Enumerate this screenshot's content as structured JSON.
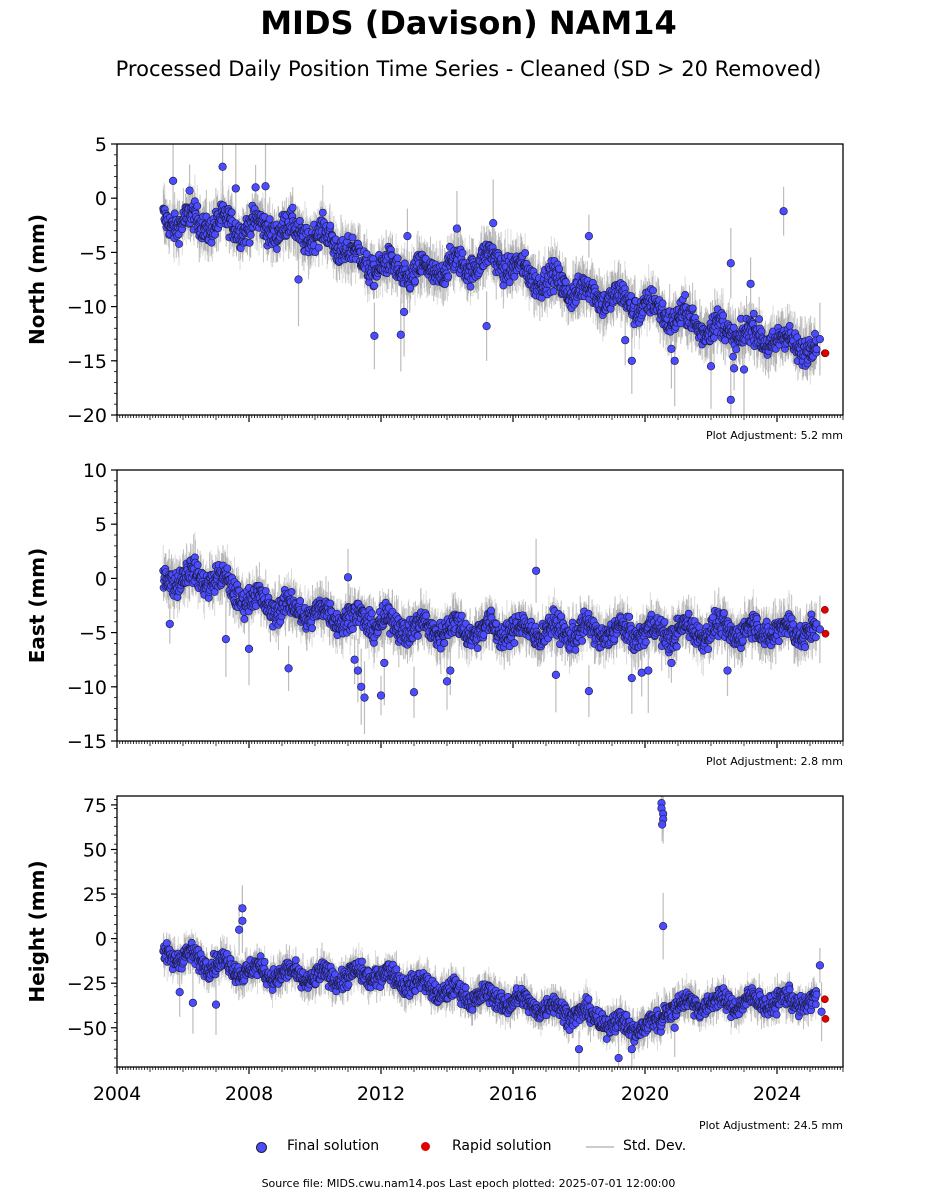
{
  "title": "MIDS (Davison) NAM14",
  "subtitle": "Processed Daily Position Time Series - Cleaned (SD > 20 Removed)",
  "footer": "Source file: MIDS.cwu.nam14.pos  Last epoch plotted: 2025-07-01 12:00:00",
  "legend": [
    {
      "label": "Final solution",
      "color": "#4b4bff",
      "kind": "marker"
    },
    {
      "label": "Rapid solution",
      "color": "#e00000",
      "kind": "marker"
    },
    {
      "label": "Std. Dev.",
      "color": "#cccccc",
      "kind": "line"
    }
  ],
  "colors": {
    "final": "#4b4bff",
    "rapid": "#e00000",
    "stddev": "#bdbdbd"
  },
  "chart_data": [
    {
      "type": "scatter",
      "ylabel": "North (mm)",
      "adjustment": "Plot Adjustment: 5.2 mm",
      "ylim": [
        -20,
        5
      ],
      "yticks": [
        5,
        0,
        -5,
        -10,
        -15,
        -20
      ],
      "ytick_labels": [
        "5",
        "0",
        "−5",
        "−10",
        "−15",
        "−20"
      ],
      "xlim": [
        2004,
        2026
      ],
      "trend": [
        [
          2005.4,
          -2.0
        ],
        [
          2007.0,
          -2.4
        ],
        [
          2009.0,
          -2.8
        ],
        [
          2010.5,
          -3.8
        ],
        [
          2011.5,
          -6.0
        ],
        [
          2013.0,
          -7.0
        ],
        [
          2015.5,
          -5.6
        ],
        [
          2016.4,
          -7.0
        ],
        [
          2018.0,
          -8.5
        ],
        [
          2020.0,
          -10.0
        ],
        [
          2022.0,
          -12.0
        ],
        [
          2025.2,
          -13.8
        ]
      ],
      "spread": 1.6,
      "outliers": [
        [
          2005.7,
          1.6
        ],
        [
          2006.2,
          0.7
        ],
        [
          2007.2,
          2.9
        ],
        [
          2007.6,
          0.9
        ],
        [
          2008.2,
          1.0
        ],
        [
          2008.5,
          1.1
        ],
        [
          2009.5,
          -7.5
        ],
        [
          2011.8,
          -12.7
        ],
        [
          2012.6,
          -12.6
        ],
        [
          2012.7,
          -10.5
        ],
        [
          2012.8,
          -3.5
        ],
        [
          2014.3,
          -2.8
        ],
        [
          2015.2,
          -11.8
        ],
        [
          2015.4,
          -2.3
        ],
        [
          2018.3,
          -3.5
        ],
        [
          2019.4,
          -13.1
        ],
        [
          2019.6,
          -15.0
        ],
        [
          2020.8,
          -13.9
        ],
        [
          2020.9,
          -15.0
        ],
        [
          2022.0,
          -15.5
        ],
        [
          2022.6,
          -6.0
        ],
        [
          2022.6,
          -18.6
        ],
        [
          2022.7,
          -15.7
        ],
        [
          2023.0,
          -15.8
        ],
        [
          2023.2,
          -7.9
        ],
        [
          2024.2,
          -1.2
        ],
        [
          2025.3,
          -13.0
        ]
      ],
      "rapid": [
        [
          2025.45,
          -14.3
        ],
        [
          2025.47,
          -14.3
        ]
      ]
    },
    {
      "type": "scatter",
      "ylabel": "East (mm)",
      "adjustment": "Plot Adjustment: 2.8 mm",
      "ylim": [
        -15,
        10
      ],
      "yticks": [
        10,
        5,
        0,
        -5,
        -10,
        -15
      ],
      "ytick_labels": [
        "10",
        "5",
        "0",
        "−5",
        "−10",
        "−15"
      ],
      "xlim": [
        2004,
        2026
      ],
      "trend": [
        [
          2005.4,
          0.2
        ],
        [
          2007.0,
          0.0
        ],
        [
          2008.0,
          -2.0
        ],
        [
          2009.5,
          -3.0
        ],
        [
          2011.0,
          -3.6
        ],
        [
          2013.0,
          -4.6
        ],
        [
          2016.0,
          -4.8
        ],
        [
          2019.5,
          -5.0
        ],
        [
          2022.0,
          -4.8
        ],
        [
          2025.2,
          -4.8
        ]
      ],
      "spread": 1.5,
      "outliers": [
        [
          2005.6,
          -4.2
        ],
        [
          2007.3,
          -5.6
        ],
        [
          2008.0,
          -6.5
        ],
        [
          2009.2,
          -8.3
        ],
        [
          2011.2,
          -7.5
        ],
        [
          2011.3,
          -8.5
        ],
        [
          2011.4,
          -10.0
        ],
        [
          2011.5,
          -11.0
        ],
        [
          2011.0,
          0.1
        ],
        [
          2012.0,
          -10.8
        ],
        [
          2012.1,
          -7.8
        ],
        [
          2013.0,
          -10.5
        ],
        [
          2014.0,
          -9.5
        ],
        [
          2014.1,
          -8.5
        ],
        [
          2016.7,
          0.7
        ],
        [
          2017.3,
          -8.9
        ],
        [
          2018.3,
          -10.4
        ],
        [
          2019.6,
          -9.2
        ],
        [
          2019.9,
          -8.7
        ],
        [
          2020.1,
          -8.5
        ],
        [
          2020.8,
          -7.8
        ],
        [
          2022.5,
          -8.5
        ],
        [
          2025.3,
          -4.7
        ]
      ],
      "rapid": [
        [
          2025.45,
          -2.9
        ],
        [
          2025.47,
          -5.1
        ]
      ]
    },
    {
      "type": "scatter",
      "ylabel": "Height (mm)",
      "adjustment": "Plot Adjustment: 24.5 mm",
      "ylim": [
        -72,
        80
      ],
      "yticks": [
        75,
        50,
        25,
        0,
        -25,
        -50
      ],
      "ytick_labels": [
        "75",
        "50",
        "25",
        "0",
        "−25",
        "−50"
      ],
      "xtick_values": [
        2004,
        2008,
        2012,
        2016,
        2020,
        2024
      ],
      "xtick_labels": [
        "2004",
        "2008",
        "2012",
        "2016",
        "2020",
        "2024"
      ],
      "xlim": [
        2004,
        2026
      ],
      "trend": [
        [
          2005.4,
          -8.0
        ],
        [
          2006.5,
          -12.0
        ],
        [
          2008.0,
          -18.0
        ],
        [
          2010.0,
          -22.0
        ],
        [
          2012.0,
          -20.0
        ],
        [
          2014.0,
          -30.0
        ],
        [
          2016.0,
          -35.0
        ],
        [
          2018.0,
          -42.0
        ],
        [
          2019.5,
          -50.0
        ],
        [
          2020.5,
          -48.0
        ],
        [
          2020.6,
          -38.0
        ],
        [
          2022.0,
          -36.0
        ],
        [
          2025.2,
          -35.0
        ]
      ],
      "spread": 7,
      "outliers": [
        [
          2005.9,
          -30.0
        ],
        [
          2006.3,
          -36.0
        ],
        [
          2007.8,
          17.0
        ],
        [
          2007.8,
          10.0
        ],
        [
          2007.7,
          5.0
        ],
        [
          2007.0,
          -37.0
        ],
        [
          2018.0,
          -62.0
        ],
        [
          2019.2,
          -67.0
        ],
        [
          2019.6,
          -62.0
        ],
        [
          2020.5,
          76.0
        ],
        [
          2020.5,
          73.0
        ],
        [
          2020.55,
          70.0
        ],
        [
          2020.55,
          67.0
        ],
        [
          2020.52,
          64.0
        ],
        [
          2020.55,
          7.0
        ],
        [
          2020.9,
          -50.0
        ],
        [
          2025.3,
          -15.0
        ],
        [
          2025.35,
          -41.0
        ]
      ],
      "rapid": [
        [
          2025.45,
          -34.0
        ],
        [
          2025.47,
          -45.0
        ]
      ]
    }
  ]
}
